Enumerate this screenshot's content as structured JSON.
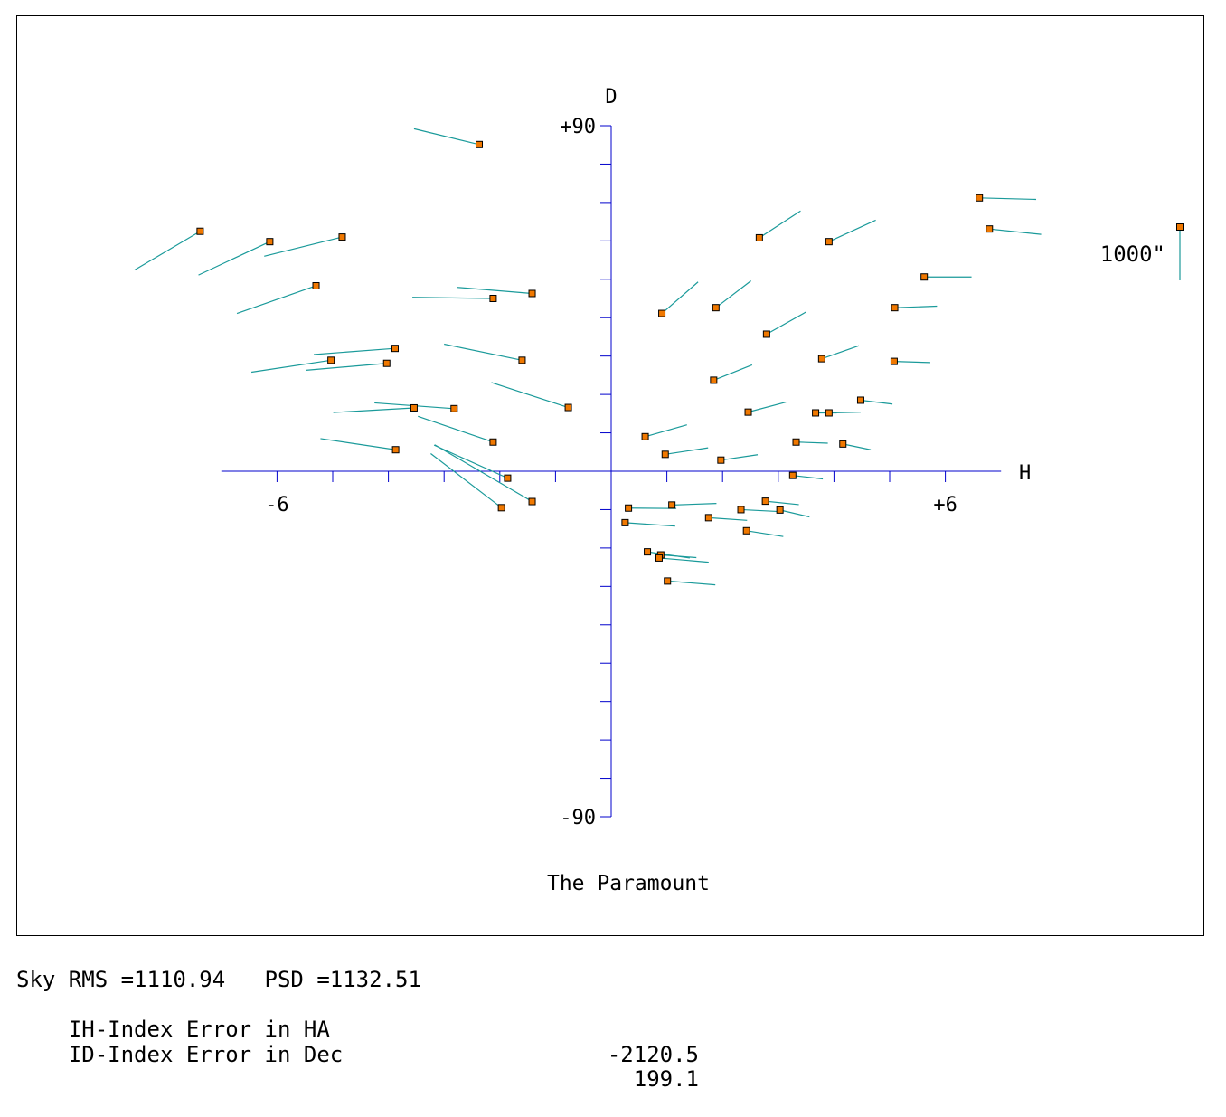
{
  "chart_data": {
    "type": "scatter",
    "title": "The Paramount",
    "xlabel": "H",
    "ylabel": "D",
    "x_tick_labels": [
      "-6",
      "+6"
    ],
    "y_tick_labels": [
      "+90",
      "-90"
    ],
    "xlim": [
      -7,
      7
    ],
    "ylim": [
      -90,
      90
    ],
    "scale_label": "1000\"",
    "colors": {
      "axes": "#0000cc",
      "vector": "#1a9a9a",
      "marker": "#f07800",
      "marker_edge": "#000000"
    },
    "points": [
      {
        "h": -2.37,
        "d": 85.1,
        "dh": -1.17,
        "dd": 4.1
      },
      {
        "h": -7.38,
        "d": 62.5,
        "dh": -1.18,
        "dd": -10.1
      },
      {
        "h": -6.13,
        "d": 59.8,
        "dh": -1.28,
        "dd": -8.7
      },
      {
        "h": -4.83,
        "d": 61.0,
        "dh": -1.4,
        "dd": -5.0
      },
      {
        "h": -5.3,
        "d": 48.3,
        "dh": -1.42,
        "dd": -7.2
      },
      {
        "h": -2.12,
        "d": 45.0,
        "dh": -1.45,
        "dd": 0.3
      },
      {
        "h": -1.42,
        "d": 46.3,
        "dh": -1.35,
        "dd": 1.6
      },
      {
        "h": -3.88,
        "d": 32.0,
        "dh": -1.46,
        "dd": -1.6
      },
      {
        "h": -5.03,
        "d": 28.9,
        "dh": -1.43,
        "dd": -3.1
      },
      {
        "h": -4.03,
        "d": 28.1,
        "dh": -1.45,
        "dd": -1.8
      },
      {
        "h": -1.6,
        "d": 28.9,
        "dh": -1.4,
        "dd": 4.2
      },
      {
        "h": -0.77,
        "d": 16.6,
        "dh": -1.38,
        "dd": 6.5
      },
      {
        "h": -3.54,
        "d": 16.5,
        "dh": -1.45,
        "dd": -1.2
      },
      {
        "h": -2.82,
        "d": 16.3,
        "dh": -1.43,
        "dd": 1.5
      },
      {
        "h": -2.12,
        "d": 7.6,
        "dh": -1.35,
        "dd": 6.7
      },
      {
        "h": -3.87,
        "d": 5.6,
        "dh": -1.35,
        "dd": 2.9
      },
      {
        "h": -1.86,
        "d": -1.8,
        "dh": -1.32,
        "dd": 8.6
      },
      {
        "h": -1.97,
        "d": -9.5,
        "dh": -1.27,
        "dd": 14.1
      },
      {
        "h": -1.42,
        "d": -7.9,
        "dh": -1.75,
        "dd": 14.8
      },
      {
        "h": 2.66,
        "d": 60.8,
        "dh": 0.74,
        "dd": 7.0
      },
      {
        "h": 3.91,
        "d": 59.8,
        "dh": 0.84,
        "dd": 5.6
      },
      {
        "h": 6.61,
        "d": 71.2,
        "dh": 1.02,
        "dd": -0.4
      },
      {
        "h": 6.79,
        "d": 63.1,
        "dh": 0.93,
        "dd": -1.4
      },
      {
        "h": 5.62,
        "d": 50.6,
        "dh": 0.85,
        "dd": 0.0
      },
      {
        "h": 5.09,
        "d": 42.6,
        "dh": 0.76,
        "dd": 0.4
      },
      {
        "h": 0.91,
        "d": 41.1,
        "dh": 0.65,
        "dd": 8.2
      },
      {
        "h": 1.88,
        "d": 42.6,
        "dh": 0.63,
        "dd": 7.0
      },
      {
        "h": 2.79,
        "d": 35.7,
        "dh": 0.71,
        "dd": 5.8
      },
      {
        "h": 3.78,
        "d": 29.3,
        "dh": 0.67,
        "dd": 3.4
      },
      {
        "h": 5.08,
        "d": 28.6,
        "dh": 0.65,
        "dd": -0.3
      },
      {
        "h": 1.84,
        "d": 23.7,
        "dh": 0.69,
        "dd": 4.0
      },
      {
        "h": 4.48,
        "d": 18.5,
        "dh": 0.57,
        "dd": -1.0
      },
      {
        "h": 2.46,
        "d": 15.4,
        "dh": 0.68,
        "dd": 2.6
      },
      {
        "h": 3.67,
        "d": 15.2,
        "dh": 0.38,
        "dd": 0.0
      },
      {
        "h": 3.91,
        "d": 15.2,
        "dh": 0.57,
        "dd": 0.2
      },
      {
        "h": 0.61,
        "d": 9.0,
        "dh": 0.75,
        "dd": 3.1
      },
      {
        "h": 0.97,
        "d": 4.4,
        "dh": 0.77,
        "dd": 1.7
      },
      {
        "h": 1.97,
        "d": 2.9,
        "dh": 0.66,
        "dd": 1.4
      },
      {
        "h": 3.32,
        "d": 7.6,
        "dh": 0.57,
        "dd": -0.3
      },
      {
        "h": 4.16,
        "d": 7.1,
        "dh": 0.5,
        "dd": -1.5
      },
      {
        "h": 3.26,
        "d": -1.1,
        "dh": 0.54,
        "dd": -0.9
      },
      {
        "h": 0.31,
        "d": -9.6,
        "dh": 0.86,
        "dd": -0.1
      },
      {
        "h": 1.09,
        "d": -8.8,
        "dh": 0.8,
        "dd": 0.4
      },
      {
        "h": 0.25,
        "d": -13.4,
        "dh": 0.9,
        "dd": -0.9
      },
      {
        "h": 1.75,
        "d": -12.1,
        "dh": 0.69,
        "dd": -0.7
      },
      {
        "h": 2.33,
        "d": -10.0,
        "dh": 0.68,
        "dd": -0.5
      },
      {
        "h": 2.77,
        "d": -7.8,
        "dh": 0.6,
        "dd": -0.9
      },
      {
        "h": 3.03,
        "d": -10.1,
        "dh": 0.53,
        "dd": -1.8
      },
      {
        "h": 2.43,
        "d": -15.5,
        "dh": 0.66,
        "dd": -1.5
      },
      {
        "h": 0.65,
        "d": -21.0,
        "dh": 0.76,
        "dd": -1.6
      },
      {
        "h": 0.89,
        "d": -21.8,
        "dh": 0.64,
        "dd": -0.7
      },
      {
        "h": 0.86,
        "d": -22.6,
        "dh": 0.89,
        "dd": -1.1
      },
      {
        "h": 1.01,
        "d": -28.6,
        "dh": 0.86,
        "dd": -1.0
      }
    ]
  },
  "stats": {
    "line1": "Sky RMS =1110.94   PSD =1132.51",
    "ih_label": "IH-Index Error in HA",
    "ih_value": "-2120.5",
    "id_label": "ID-Index Error in Dec",
    "id_value": "199.1"
  }
}
